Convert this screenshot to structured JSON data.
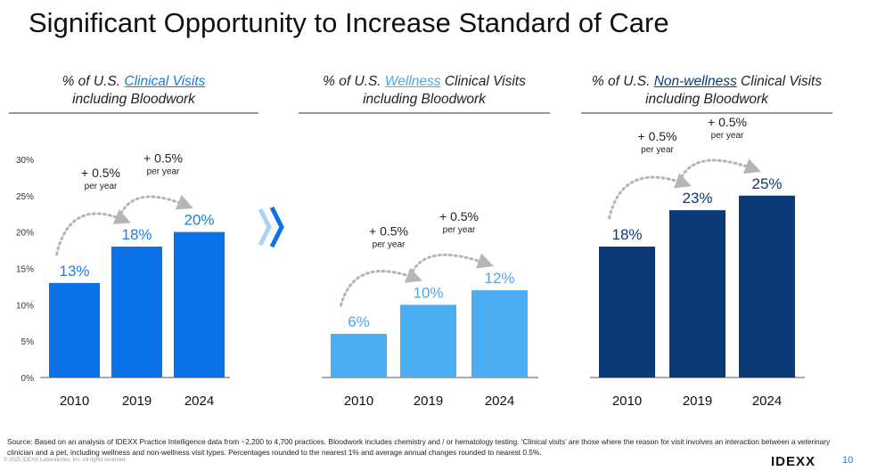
{
  "title": "Significant Opportunity to Increase Standard of Care",
  "chart_data": [
    {
      "type": "bar",
      "title_pre": "% of U.S. ",
      "title_link": "Clinical Visits",
      "title_post": "",
      "title_line2": "including Bloodwork",
      "categories": [
        "2010",
        "2019",
        "2024"
      ],
      "values": [
        13,
        18,
        20
      ],
      "labels": [
        "13%",
        "18%",
        "20%"
      ],
      "color": "#0b72e7",
      "label_color": "#1a7fe6",
      "link_color": "#1a7be0",
      "ylim": [
        0,
        30
      ],
      "yticks": [
        "0%",
        "5%",
        "10%",
        "15%",
        "20%",
        "25%",
        "30%"
      ],
      "annotations": [
        {
          "main": "+ 0.5%",
          "sub": "per year"
        },
        {
          "main": "+ 0.5%",
          "sub": "per year"
        }
      ]
    },
    {
      "type": "bar",
      "title_pre": "% of U.S. ",
      "title_link": "Wellness",
      "title_post": " Clinical Visits",
      "title_line2": "including Bloodwork",
      "categories": [
        "2010",
        "2019",
        "2024"
      ],
      "values": [
        6,
        10,
        12
      ],
      "labels": [
        "6%",
        "10%",
        "12%"
      ],
      "color": "#4badf4",
      "label_color": "#4aa8ee",
      "link_color": "#4aa8ee",
      "ylim": [
        0,
        30
      ],
      "annotations": [
        {
          "main": "+ 0.5%",
          "sub": "per year"
        },
        {
          "main": "+ 0.5%",
          "sub": "per year"
        }
      ]
    },
    {
      "type": "bar",
      "title_pre": "% of U.S. ",
      "title_link": "Non-wellness",
      "title_post": " Clinical Visits",
      "title_line2": "including Bloodwork",
      "categories": [
        "2010",
        "2019",
        "2024"
      ],
      "values": [
        18,
        23,
        25
      ],
      "labels": [
        "18%",
        "23%",
        "25%"
      ],
      "color": "#0c3a78",
      "label_color": "#0c3a78",
      "link_color": "#0c3a78",
      "ylim": [
        0,
        30
      ],
      "annotations": [
        {
          "main": "+ 0.5%",
          "sub": "per year"
        },
        {
          "main": "+ 0.5%",
          "sub": "per year"
        }
      ]
    }
  ],
  "footer": {
    "source": "Source: Based on an analysis of IDEXX Practice Intelligence data from ~2,200 to 4,700 practices. Bloodwork includes chemistry and / or hematology testing. ‘Clinical visits’ are those where the reason for visit involves an interaction between a veterinary clinician and a pet, including wellness and non-wellness visit types. Percentages rounded to the nearest 1% and average annual changes rounded to nearest 0.5%.",
    "copyright": "© 2025 IDEXX Laboratories, Inc. All rights reserved.",
    "logo": "IDEXX",
    "page": "10"
  }
}
